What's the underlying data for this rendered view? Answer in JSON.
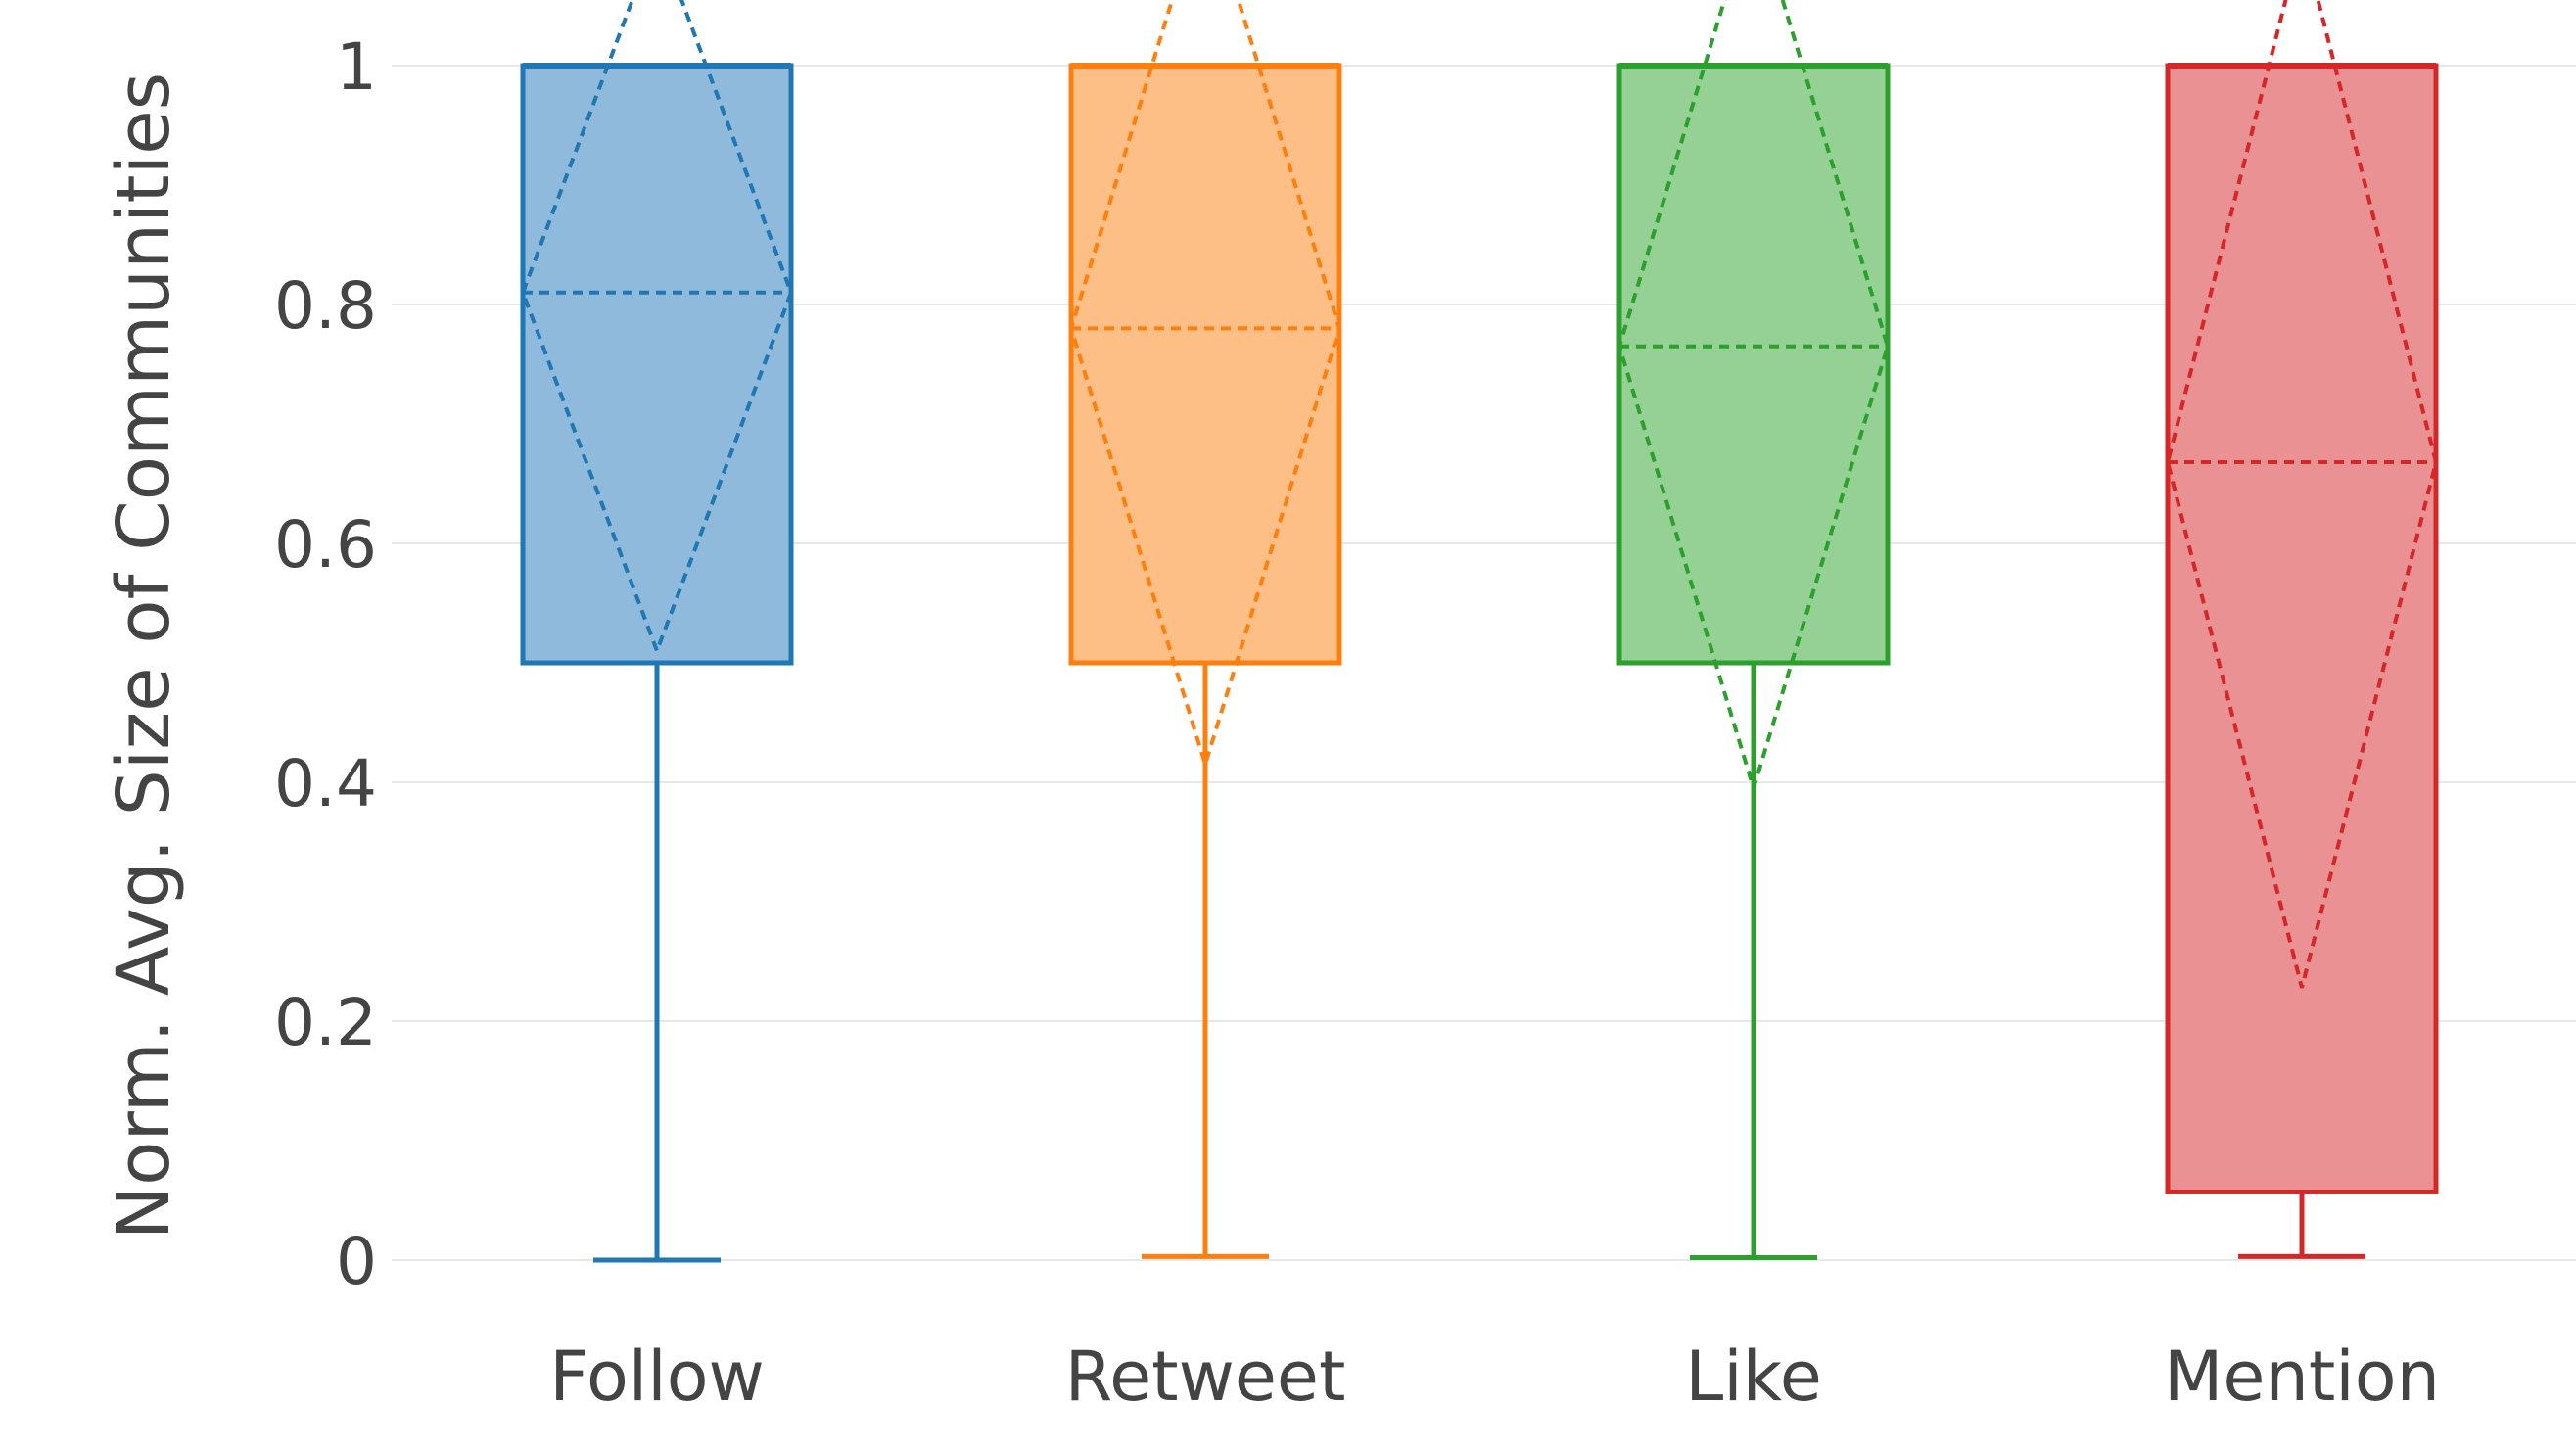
{
  "chart_data": {
    "type": "box",
    "ylabel": "Norm. Avg. Size of Communities",
    "ylim": [
      -0.02,
      1.05
    ],
    "yticks": [
      {
        "value": 0,
        "label": "0"
      },
      {
        "value": 0.2,
        "label": "0.2"
      },
      {
        "value": 0.4,
        "label": "0.4"
      },
      {
        "value": 0.6,
        "label": "0.6"
      },
      {
        "value": 0.8,
        "label": "0.8"
      },
      {
        "value": 1,
        "label": "1"
      }
    ],
    "grid": true,
    "categories": [
      "Follow",
      "Retweet",
      "Like",
      "Mention"
    ],
    "series": [
      {
        "category": "Follow",
        "color": "#1f77b4",
        "fill": "#8fbadb",
        "min": 0.0,
        "q1": 0.5,
        "median": 1.0,
        "q3": 1.0,
        "max": 1.0,
        "mean": 0.81,
        "sd": 0.3
      },
      {
        "category": "Retweet",
        "color": "#ff7f0e",
        "fill": "#fdbf86",
        "min": 0.003,
        "q1": 0.5,
        "median": 1.0,
        "q3": 1.0,
        "max": 1.0,
        "mean": 0.78,
        "sd": 0.365
      },
      {
        "category": "Like",
        "color": "#2ca02c",
        "fill": "#95d194",
        "min": 0.002,
        "q1": 0.5,
        "median": 1.0,
        "q3": 1.0,
        "max": 1.0,
        "mean": 0.765,
        "sd": 0.37
      },
      {
        "category": "Mention",
        "color": "#d62728",
        "fill": "#ea9293",
        "min": 0.003,
        "q1": 0.057,
        "median": 1.0,
        "q3": 1.0,
        "max": 1.0,
        "mean": 0.668,
        "sd": 0.44
      }
    ]
  }
}
